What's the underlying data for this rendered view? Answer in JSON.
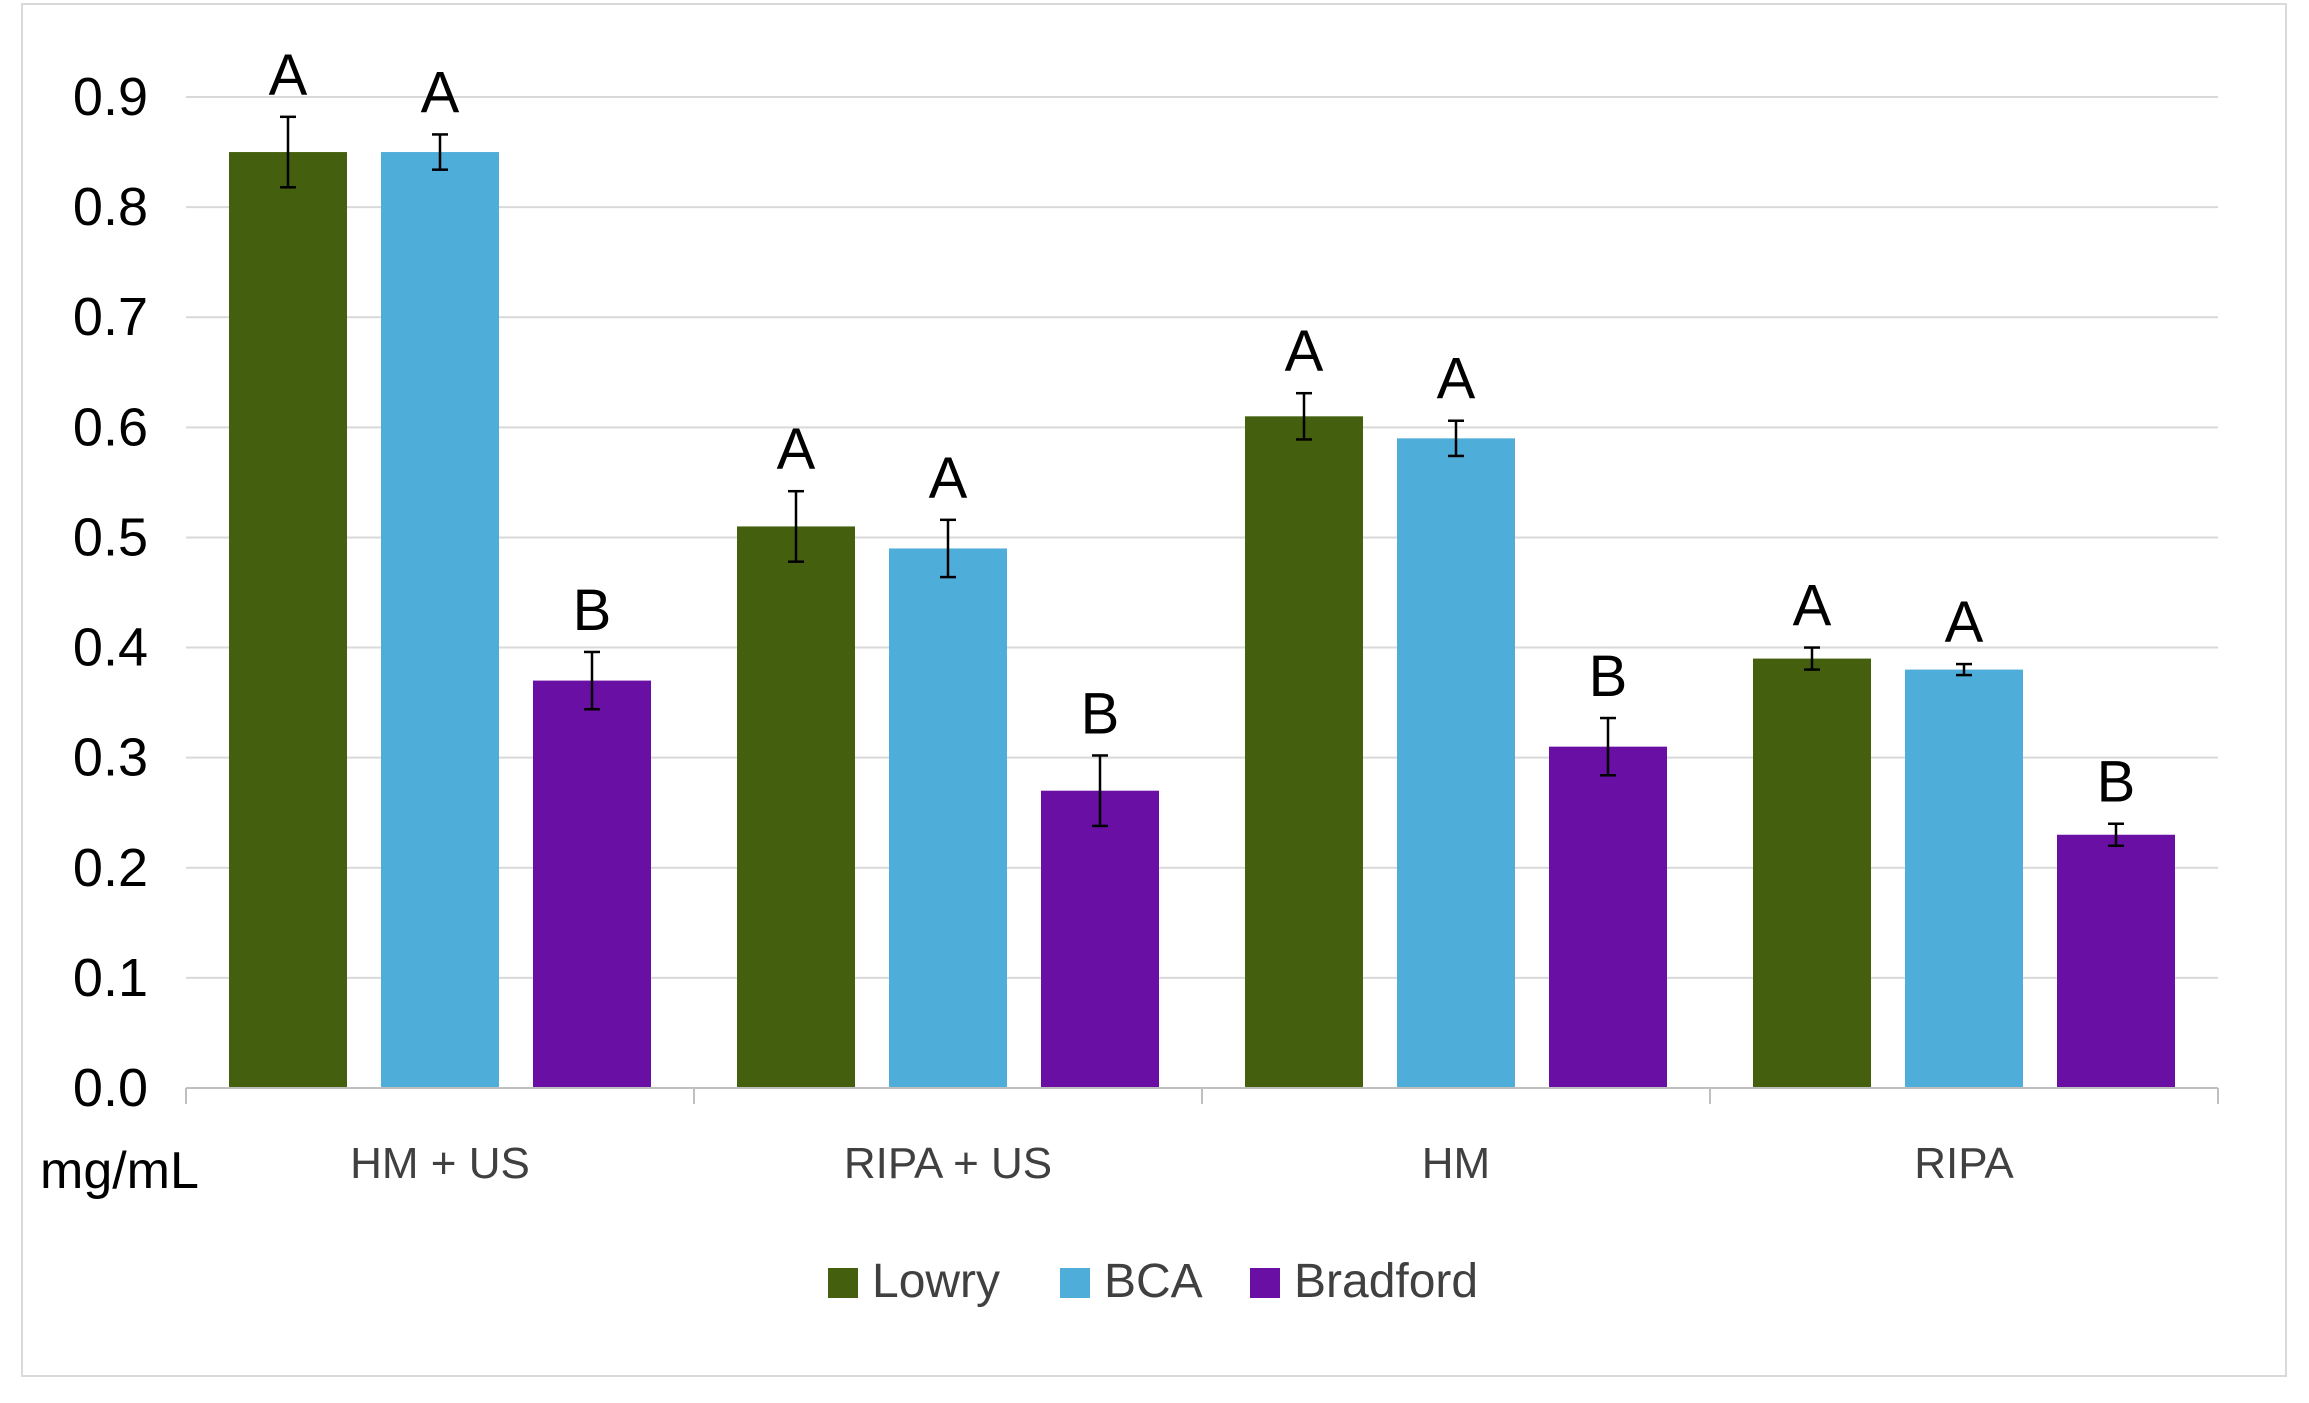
{
  "chart_data": {
    "type": "bar",
    "title": "",
    "xlabel": "",
    "ylabel": "mg/mL",
    "ylim": [
      0,
      0.9
    ],
    "yticks": [
      "0.0",
      "0.1",
      "0.2",
      "0.3",
      "0.4",
      "0.5",
      "0.6",
      "0.7",
      "0.8",
      "0.9"
    ],
    "grid": true,
    "legend_position": "bottom",
    "categories": [
      "HM + US",
      "RIPA + US",
      "HM",
      "RIPA"
    ],
    "series": [
      {
        "name": "Lowry",
        "color": "#44600f",
        "values": [
          0.85,
          0.51,
          0.61,
          0.39
        ],
        "errors": [
          0.032,
          0.032,
          0.021,
          0.01
        ],
        "letters": [
          "A",
          "A",
          "A",
          "A"
        ]
      },
      {
        "name": "BCA",
        "color": "#4fadd9",
        "values": [
          0.85,
          0.49,
          0.59,
          0.38
        ],
        "errors": [
          0.016,
          0.026,
          0.016,
          0.005
        ],
        "letters": [
          "A",
          "A",
          "A",
          "A"
        ]
      },
      {
        "name": "Bradford",
        "color": "#6a0fa3",
        "values": [
          0.37,
          0.27,
          0.31,
          0.23
        ],
        "errors": [
          0.026,
          0.032,
          0.026,
          0.01
        ],
        "letters": [
          "B",
          "B",
          "B",
          "B"
        ]
      }
    ]
  }
}
